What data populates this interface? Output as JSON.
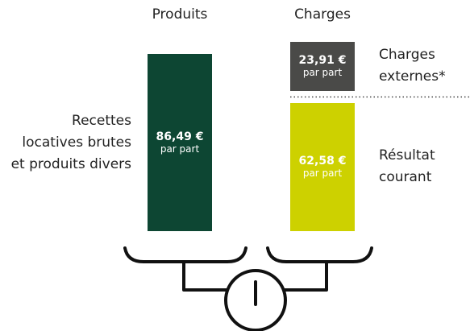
{
  "chart_data": {
    "type": "bar",
    "stacked": true,
    "categories": [
      "Produits",
      "Charges"
    ],
    "unit_label": "par part",
    "series": [
      {
        "name": "Recettes locatives brutes et produits divers",
        "color": "#0d4633",
        "values": [
          86.49,
          null
        ],
        "value_labels": [
          "86,49 €",
          null
        ]
      },
      {
        "name": "Résultat courant",
        "color": "#cdd100",
        "values": [
          null,
          62.58
        ],
        "value_labels": [
          null,
          "62,58 €"
        ]
      },
      {
        "name": "Charges externes*",
        "color": "#4a4a48",
        "values": [
          null,
          23.91
        ],
        "value_labels": [
          null,
          "23,91 €"
        ]
      }
    ]
  }
}
